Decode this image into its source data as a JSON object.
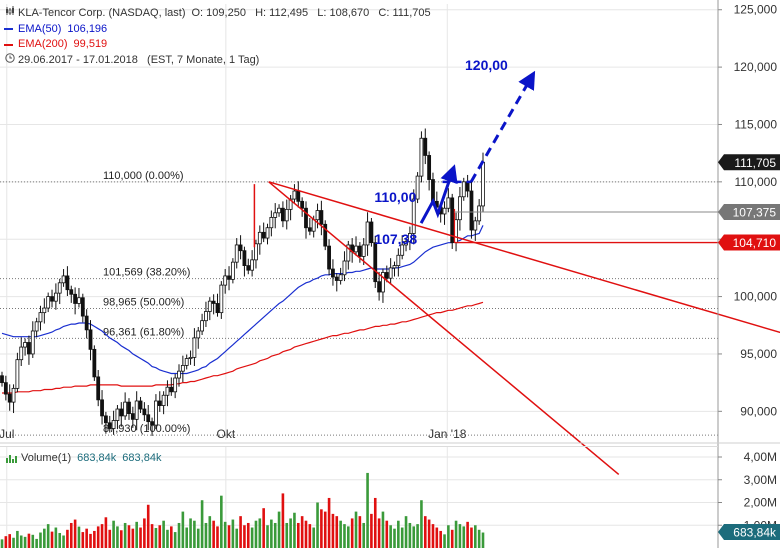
{
  "legend": {
    "instrument_icon": "candlestick-icon",
    "instrument": "KLA-Tencor Corp. (NASDAQ, last)",
    "ohlc": "O: 109,250   H: 112,495   L: 108,670   C: 111,705",
    "ema50_label": "EMA(50)",
    "ema50_value": "106,196",
    "ema200_label": "EMA(200)",
    "ema200_value": "99,519",
    "range_icon": "clock-icon",
    "range": "29.06.2017 - 17.01.2018   (EST, 7 Monate, 1 Tag)"
  },
  "volume_legend": {
    "label": "Volume(1)",
    "value1": "683,84k",
    "value2": "683,84k"
  },
  "colors": {
    "ema50": "#1a2fd0",
    "ema200": "#e01010",
    "trend": "#e01010",
    "annotation": "#0a14c8",
    "candle": "#111111",
    "volume_up": "#3a9a3a",
    "volume_down": "#e01010",
    "current_badge": "#1a1a1a",
    "level_badge": "#777777",
    "support_badge": "#e01010",
    "volume_badge": "#1c6c7c"
  },
  "chart_data": [
    {
      "type": "candlestick",
      "x_range": [
        "2017-06-29",
        "2018-01-17"
      ],
      "ylim": [
        87.5,
        125.5
      ],
      "x_ticks": [
        {
          "date": "2017-07-01",
          "label": "Jul"
        },
        {
          "date": "2017-10-01",
          "label": "Okt"
        },
        {
          "date": "2018-01-02",
          "label": "Jan '18"
        }
      ],
      "y_ticks": [
        90,
        95,
        100,
        105,
        110,
        115,
        120,
        125
      ],
      "y_tick_labels": [
        "90,000",
        "95,000",
        "100,000",
        "105,000",
        "110,000",
        "115,000",
        "120,000",
        "125,000"
      ],
      "grid": true,
      "close": [
        92.5,
        91.5,
        90.8,
        92.0,
        94.5,
        95.6,
        96.0,
        95.0,
        97.0,
        97.8,
        98.6,
        99.0,
        100.0,
        99.6,
        100.3,
        101.2,
        101.8,
        100.6,
        100.2,
        99.4,
        99.9,
        98.3,
        97.1,
        95.4,
        93.0,
        91.0,
        89.6,
        89.0,
        88.5,
        89.2,
        90.2,
        89.6,
        90.8,
        89.8,
        89.3,
        90.9,
        90.2,
        89.7,
        89.1,
        88.8,
        90.9,
        90.5,
        91.4,
        92.1,
        91.7,
        92.9,
        93.5,
        94.0,
        94.6,
        94.7,
        96.4,
        97.0,
        97.9,
        98.7,
        99.6,
        99.4,
        98.6,
        101.0,
        101.8,
        101.5,
        103.0,
        104.5,
        104.0,
        102.7,
        102.3,
        103.2,
        104.6,
        105.6,
        105.1,
        106.0,
        106.9,
        107.3,
        107.7,
        106.6,
        107.6,
        108.5,
        109.2,
        108.3,
        107.7,
        106.0,
        105.7,
        106.7,
        107.5,
        106.3,
        104.4,
        102.4,
        101.7,
        101.4,
        101.9,
        103.1,
        104.5,
        103.9,
        104.4,
        103.5,
        104.5,
        106.5,
        104.7,
        101.3,
        100.4,
        102.1,
        101.6,
        102.5,
        102.7,
        103.6,
        104.5,
        104.8,
        105.5,
        108.5,
        110.5,
        113.8,
        112.3,
        110.2,
        108.3,
        107.8,
        107.2,
        107.7,
        108.6,
        104.7,
        106.7,
        108.7,
        110.0,
        109.2,
        105.8,
        106.6,
        107.9,
        111.7
      ],
      "volume_unit": "M",
      "volume": [
        0.38,
        0.52,
        0.61,
        0.45,
        0.75,
        0.55,
        0.49,
        0.63,
        0.58,
        0.4,
        0.68,
        0.85,
        1.05,
        0.72,
        0.9,
        0.66,
        0.55,
        0.8,
        1.1,
        1.25,
        0.94,
        0.7,
        0.85,
        0.62,
        0.75,
        0.95,
        1.05,
        1.35,
        0.8,
        1.2,
        0.95,
        0.78,
        1.1,
        1.0,
        0.85,
        1.15,
        0.9,
        1.3,
        1.9,
        1.05,
        0.88,
        1.0,
        1.2,
        0.8,
        0.95,
        0.7,
        1.1,
        1.6,
        0.9,
        1.3,
        1.2,
        0.85,
        2.1,
        1.1,
        1.4,
        1.2,
        0.95,
        2.3,
        1.15,
        1.0,
        1.25,
        0.85,
        1.4,
        1.0,
        1.1,
        0.9,
        1.2,
        1.3,
        1.75,
        1.0,
        1.25,
        1.1,
        1.6,
        2.4,
        1.1,
        1.3,
        1.55,
        1.1,
        1.4,
        1.2,
        1.05,
        0.9,
        2.0,
        1.7,
        1.6,
        2.2,
        1.5,
        1.4,
        1.2,
        1.05,
        0.95,
        1.3,
        1.6,
        1.4,
        1.1,
        3.3,
        1.5,
        2.2,
        1.3,
        1.6,
        1.2,
        1.0,
        0.85,
        1.2,
        0.9,
        1.4,
        1.1,
        0.95,
        1.05,
        2.1,
        1.4,
        1.25,
        1.05,
        0.9,
        0.75,
        0.6,
        1.0,
        0.8,
        1.2,
        1.05,
        0.95,
        1.15,
        0.9,
        1.0,
        0.8,
        0.68
      ],
      "volume_ticks_label": [
        "1,00M",
        "2,00M",
        "3,00M",
        "4,00M"
      ],
      "volume_ticks": [
        1,
        2,
        3,
        4
      ],
      "fibonacci": [
        {
          "label": "110,000 (0.00%)",
          "value": 110.0
        },
        {
          "label": "101,569 (38.20%)",
          "value": 101.569
        },
        {
          "label": "98,965 (50.00%)",
          "value": 98.965
        },
        {
          "label": "96,361 (61.80%)",
          "value": 96.361
        },
        {
          "label": "87,930 (100.00%)",
          "value": 87.93
        }
      ],
      "trend_lines": [
        {
          "from": {
            "date": "2017-10-19",
            "value": 110.0
          },
          "to": {
            "date": "2018-06-28",
            "value": 94.6
          }
        },
        {
          "from": {
            "date": "2017-10-19",
            "value": 110.0
          },
          "to": {
            "date": "2018-03-15",
            "value": 84.5
          }
        },
        {
          "from": {
            "date": "2017-10-13",
            "value": 109.8
          },
          "to": {
            "date": "2017-10-13",
            "value": 104.3
          }
        }
      ],
      "support_line": {
        "value": 104.71,
        "from_date": "2018-01-05"
      },
      "reference_line": {
        "value": 107.375,
        "from_date": "2018-01-05"
      },
      "annotations": [
        {
          "text": "120,00",
          "value": 120.0,
          "date": "2018-01-17"
        },
        {
          "text": "110,00",
          "value": 110.0,
          "date": "2017-12-20"
        },
        {
          "text": "107,38",
          "value": 107.38,
          "date": "2017-12-20"
        }
      ],
      "projection": [
        {
          "date": "2017-12-22",
          "value": 106.4
        },
        {
          "date": "2017-12-27",
          "value": 108.3
        },
        {
          "date": "2017-12-29",
          "value": 107.2
        },
        {
          "date": "2018-01-04",
          "value": 110.8
        }
      ],
      "projection_target": [
        {
          "date": "2018-01-12",
          "value": 110.0
        },
        {
          "date": "2018-02-06",
          "value": 119.0
        }
      ],
      "series": [
        {
          "name": "EMA(50)",
          "values": [
            96.8,
            96.7,
            96.6,
            96.5,
            96.5,
            96.5,
            96.5,
            96.5,
            96.5,
            96.5,
            96.6,
            96.7,
            96.8,
            96.9,
            97.1,
            97.2,
            97.4,
            97.5,
            97.6,
            97.6,
            97.7,
            97.7,
            97.7,
            97.6,
            97.4,
            97.2,
            97.0,
            96.7,
            96.4,
            96.2,
            96.0,
            95.7,
            95.5,
            95.3,
            95.0,
            94.8,
            94.6,
            94.4,
            94.2,
            93.9,
            93.8,
            93.6,
            93.5,
            93.4,
            93.3,
            93.3,
            93.3,
            93.3,
            93.3,
            93.4,
            93.5,
            93.6,
            93.8,
            93.9,
            94.2,
            94.4,
            94.6,
            94.9,
            95.2,
            95.5,
            95.8,
            96.1,
            96.4,
            96.7,
            97.0,
            97.3,
            97.6,
            97.9,
            98.2,
            98.5,
            98.8,
            99.1,
            99.4,
            99.6,
            99.9,
            100.2,
            100.5,
            100.8,
            101.0,
            101.2,
            101.3,
            101.5,
            101.6,
            101.8,
            101.9,
            101.9,
            102.0,
            102.0,
            102.0,
            102.0,
            102.1,
            102.1,
            102.2,
            102.2,
            102.3,
            102.4,
            102.5,
            102.4,
            102.4,
            102.4,
            102.4,
            102.4,
            102.5,
            102.5,
            102.6,
            102.7,
            102.8,
            103.0,
            103.3,
            103.6,
            103.9,
            104.1,
            104.3,
            104.4,
            104.5,
            104.6,
            104.7,
            104.7,
            104.8,
            104.9,
            105.1,
            105.3,
            105.3,
            105.4,
            105.5,
            106.2
          ]
        },
        {
          "name": "EMA(200)",
          "values": [
            91.6,
            91.6,
            91.6,
            91.6,
            91.7,
            91.7,
            91.7,
            91.7,
            91.8,
            91.8,
            91.8,
            91.9,
            91.9,
            91.9,
            92.0,
            92.0,
            92.1,
            92.1,
            92.1,
            92.2,
            92.2,
            92.2,
            92.2,
            92.3,
            92.3,
            92.3,
            92.3,
            92.3,
            92.3,
            92.3,
            92.3,
            92.2,
            92.2,
            92.2,
            92.2,
            92.2,
            92.2,
            92.2,
            92.2,
            92.2,
            92.3,
            92.3,
            92.3,
            92.3,
            92.3,
            92.4,
            92.4,
            92.5,
            92.5,
            92.6,
            92.6,
            92.7,
            92.8,
            92.9,
            93.0,
            93.1,
            93.1,
            93.2,
            93.3,
            93.4,
            93.5,
            93.7,
            93.8,
            93.9,
            94.0,
            94.1,
            94.2,
            94.4,
            94.5,
            94.6,
            94.8,
            94.9,
            95.0,
            95.2,
            95.3,
            95.4,
            95.6,
            95.7,
            95.8,
            95.9,
            96.0,
            96.1,
            96.2,
            96.3,
            96.4,
            96.5,
            96.6,
            96.6,
            96.7,
            96.8,
            96.8,
            96.9,
            97.0,
            97.1,
            97.1,
            97.2,
            97.3,
            97.4,
            97.4,
            97.5,
            97.5,
            97.6,
            97.6,
            97.7,
            97.8,
            97.8,
            97.9,
            98.0,
            98.1,
            98.2,
            98.3,
            98.4,
            98.5,
            98.6,
            98.6,
            98.7,
            98.8,
            98.8,
            98.9,
            99.0,
            99.1,
            99.2,
            99.2,
            99.3,
            99.4,
            99.5
          ]
        }
      ]
    }
  ],
  "badges": {
    "current": "111,705",
    "level": "107,375",
    "support": "104,710",
    "volume": "683,84k"
  }
}
